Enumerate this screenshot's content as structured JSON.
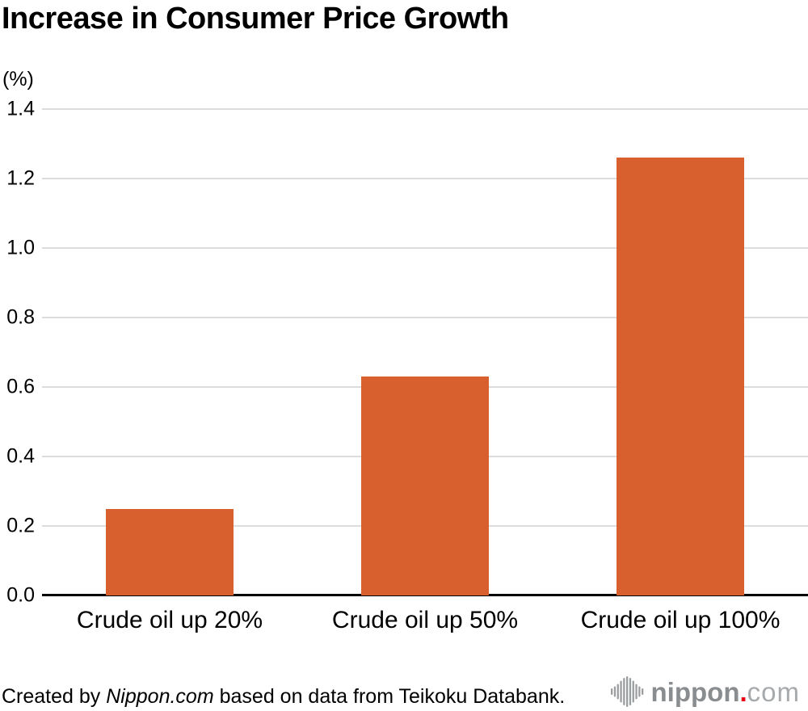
{
  "chart": {
    "title": "Increase in Consumer Price Growth",
    "unit_label": "(%)"
  },
  "chart_data": {
    "type": "bar",
    "title": "Increase in Consumer Price Growth",
    "unit_label": "(%)",
    "categories": [
      "Crude oil up 20%",
      "Crude oil up 50%",
      "Crude oil up 100%"
    ],
    "values": [
      0.25,
      0.63,
      1.26
    ],
    "xlabel": "",
    "ylabel": "(%)",
    "ylim": [
      0,
      1.4
    ],
    "ytick_step": 0.2,
    "ytick_labels": [
      "0.0",
      "0.2",
      "0.4",
      "0.6",
      "0.8",
      "1.0",
      "1.2",
      "1.4"
    ],
    "grid": true,
    "legend": false,
    "bar_color": "#d7602e",
    "gridline_color": "#dcdcdc",
    "axis_color": "#000000"
  },
  "footer": {
    "prefix": "Created by ",
    "source_name": "Nippon.com",
    "suffix": " based on data from Teikoku Databank."
  },
  "logo": {
    "icon": "waveform-icon",
    "brand": "nippon",
    "dot": ".",
    "tld": "com",
    "icon_color": "#9b9ea0",
    "brand_color": "#8a8d8f",
    "dot_color": "#e60012",
    "tld_color": "#a7aaac"
  }
}
